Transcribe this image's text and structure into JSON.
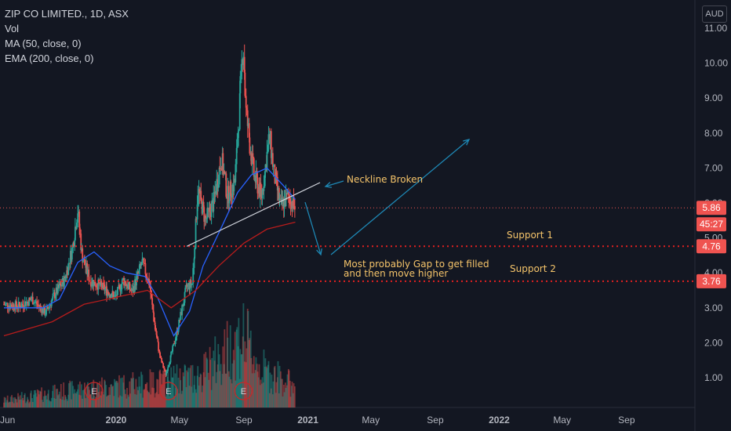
{
  "legend": {
    "title": "ZIP CO LIMITED., 1D, ASX",
    "line2": "Vol",
    "line3": "MA (50, close, 0)",
    "line4": "EMA (200, close, 0)"
  },
  "currency": "AUD",
  "price_tags": {
    "last": "5.86",
    "countdown": "45:27",
    "support1": "4.76",
    "support2": "3.76"
  },
  "annotations": {
    "neckline": "Neckline Broken",
    "gap": "Most probably Gap to get filled",
    "gap2": "and then move higher",
    "support1": "Support 1",
    "support2": "Support 2"
  },
  "earnings_marker": "E",
  "colors": {
    "background": "#131722",
    "up": "#26a69a",
    "down": "#ef5350",
    "ma": "#2962ff",
    "ema": "#b71c1c",
    "annotation": "#f5c46a",
    "arrow": "#1e88b5",
    "support_line": "#e02020",
    "neckline": "#d1d4dc"
  },
  "chart_data": {
    "type": "candlestick",
    "title": "ZIP CO LIMITED., 1D, ASX",
    "ylim": [
      0.5,
      11.4
    ],
    "y_ticks": [
      1,
      2,
      3,
      4,
      5,
      6,
      7,
      8,
      9,
      10,
      11
    ],
    "y_tick_labels": [
      "1.00",
      "2.00",
      "3.00",
      "4.00",
      "5.00",
      "6.00",
      "7.00",
      "8.00",
      "9.00",
      "10.00",
      "11.00"
    ],
    "x_ticks": [
      "Jun",
      "2020",
      "May",
      "Sep",
      "2021",
      "May",
      "Sep",
      "2022",
      "May",
      "Sep"
    ],
    "x_tick_dates": [
      "2019-06-01",
      "2020-01-01",
      "2020-05-01",
      "2020-09-01",
      "2021-01-01",
      "2021-05-01",
      "2021-09-01",
      "2022-01-01",
      "2022-05-01",
      "2022-09-01"
    ],
    "close_series": [
      [
        "2019-06-01",
        3.1
      ],
      [
        "2019-07-01",
        3.05
      ],
      [
        "2019-07-25",
        3.25
      ],
      [
        "2019-08-20",
        2.85
      ],
      [
        "2019-09-05",
        3.35
      ],
      [
        "2019-09-25",
        3.8
      ],
      [
        "2019-10-10",
        4.7
      ],
      [
        "2019-10-20",
        5.8
      ],
      [
        "2019-10-28",
        4.5
      ],
      [
        "2019-11-12",
        3.8
      ],
      [
        "2019-12-05",
        3.6
      ],
      [
        "2019-12-31",
        3.3
      ],
      [
        "2020-01-15",
        3.8
      ],
      [
        "2020-02-01",
        3.45
      ],
      [
        "2020-02-20",
        4.3
      ],
      [
        "2020-03-05",
        3.7
      ],
      [
        "2020-03-15",
        2.5
      ],
      [
        "2020-03-25",
        1.6
      ],
      [
        "2020-04-05",
        1.1
      ],
      [
        "2020-04-18",
        1.8
      ],
      [
        "2020-05-01",
        2.6
      ],
      [
        "2020-05-15",
        3.6
      ],
      [
        "2020-05-26",
        3.7
      ],
      [
        "2020-06-05",
        6.4
      ],
      [
        "2020-06-20",
        5.5
      ],
      [
        "2020-07-05",
        6.0
      ],
      [
        "2020-07-20",
        7.3
      ],
      [
        "2020-08-01",
        6.2
      ],
      [
        "2020-08-15",
        6.6
      ],
      [
        "2020-08-31",
        10.6
      ],
      [
        "2020-09-05",
        8.6
      ],
      [
        "2020-09-20",
        6.8
      ],
      [
        "2020-10-05",
        6.2
      ],
      [
        "2020-10-20",
        7.9
      ],
      [
        "2020-10-28",
        6.9
      ],
      [
        "2020-11-10",
        5.9
      ],
      [
        "2020-11-25",
        6.2
      ],
      [
        "2020-12-08",
        5.86
      ]
    ],
    "ma_50": [
      [
        "2019-06-01",
        3.0
      ],
      [
        "2019-08-15",
        3.0
      ],
      [
        "2019-09-15",
        3.25
      ],
      [
        "2019-10-20",
        4.3
      ],
      [
        "2019-11-20",
        4.6
      ],
      [
        "2019-12-20",
        4.2
      ],
      [
        "2020-01-20",
        4.0
      ],
      [
        "2020-02-25",
        3.9
      ],
      [
        "2020-03-20",
        3.3
      ],
      [
        "2020-04-20",
        2.2
      ],
      [
        "2020-05-20",
        2.9
      ],
      [
        "2020-06-15",
        4.2
      ],
      [
        "2020-07-20",
        5.3
      ],
      [
        "2020-08-20",
        6.3
      ],
      [
        "2020-09-15",
        6.8
      ],
      [
        "2020-10-15",
        7.0
      ],
      [
        "2020-11-15",
        6.5
      ],
      [
        "2020-12-08",
        6.1
      ]
    ],
    "ema_200": [
      [
        "2019-06-01",
        2.2
      ],
      [
        "2019-09-01",
        2.6
      ],
      [
        "2019-11-01",
        3.1
      ],
      [
        "2020-01-01",
        3.3
      ],
      [
        "2020-03-01",
        3.5
      ],
      [
        "2020-04-15",
        3.0
      ],
      [
        "2020-06-01",
        3.5
      ],
      [
        "2020-07-15",
        4.2
      ],
      [
        "2020-09-01",
        4.85
      ],
      [
        "2020-10-15",
        5.25
      ],
      [
        "2020-12-08",
        5.45
      ]
    ],
    "volume_relative": [
      [
        "2019-06-01",
        0.1
      ],
      [
        "2019-10-15",
        0.25
      ],
      [
        "2020-03-20",
        0.35
      ],
      [
        "2020-06-10",
        0.45
      ],
      [
        "2020-08-31",
        1.0
      ],
      [
        "2020-10-01",
        0.55
      ],
      [
        "2020-12-08",
        0.3
      ]
    ],
    "earnings_dates": [
      "2019-11-20",
      "2020-04-10",
      "2020-08-31"
    ],
    "support_levels": [
      {
        "label": "Support 1",
        "value": 4.76
      },
      {
        "label": "Support 2",
        "value": 3.76
      }
    ],
    "last_price": 5.86,
    "neckline": [
      [
        "2020-05-15",
        4.76
      ],
      [
        "2020-12-01",
        6.25
      ]
    ]
  }
}
